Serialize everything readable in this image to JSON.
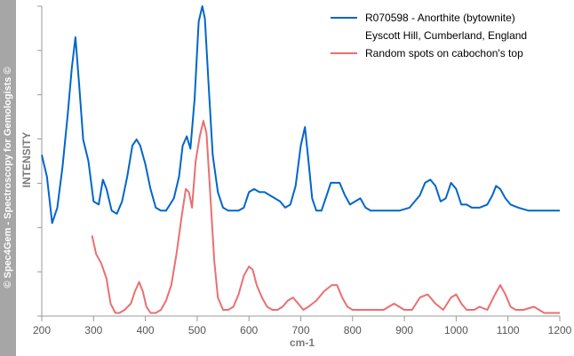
{
  "watermark": "© Spec4Gem - Spectroscopy for Gemologists ©",
  "chart_data": {
    "type": "line",
    "xlabel": "cm-1",
    "ylabel": "INTENSITY",
    "xlim": [
      200,
      1200
    ],
    "ylim": [
      0,
      1
    ],
    "y_ticklabels_shown": false,
    "grid": false,
    "legend_position": "top-right",
    "x_ticks": [
      200,
      300,
      400,
      500,
      600,
      700,
      800,
      900,
      1000,
      1100,
      1200
    ],
    "series": [
      {
        "name": "R070598 - Anorthite (bytownite)",
        "legend_lines": [
          "R070598 - Anorthite (bytownite)",
          "Eyscott Hill, Cumberland, England"
        ],
        "color": "#0066cc",
        "x": [
          200,
          210,
          220,
          230,
          240,
          250,
          258,
          265,
          272,
          280,
          290,
          300,
          310,
          318,
          325,
          335,
          345,
          355,
          365,
          375,
          383,
          390,
          400,
          410,
          420,
          430,
          440,
          455,
          465,
          472,
          480,
          487,
          495,
          503,
          510,
          515,
          522,
          530,
          540,
          550,
          560,
          570,
          580,
          590,
          600,
          610,
          620,
          630,
          640,
          650,
          660,
          670,
          680,
          690,
          700,
          708,
          715,
          722,
          730,
          740,
          750,
          758,
          765,
          775,
          785,
          795,
          805,
          815,
          825,
          835,
          850,
          870,
          890,
          910,
          920,
          930,
          940,
          950,
          960,
          970,
          980,
          990,
          1000,
          1010,
          1020,
          1030,
          1045,
          1060,
          1070,
          1077,
          1085,
          1095,
          1105,
          1120,
          1140,
          1160,
          1180,
          1200
        ],
        "y": [
          0.52,
          0.45,
          0.3,
          0.35,
          0.48,
          0.65,
          0.8,
          0.9,
          0.75,
          0.57,
          0.5,
          0.37,
          0.36,
          0.44,
          0.41,
          0.34,
          0.33,
          0.37,
          0.45,
          0.55,
          0.57,
          0.55,
          0.49,
          0.41,
          0.35,
          0.34,
          0.34,
          0.38,
          0.45,
          0.55,
          0.58,
          0.54,
          0.7,
          0.95,
          1.0,
          0.96,
          0.75,
          0.52,
          0.4,
          0.35,
          0.34,
          0.34,
          0.34,
          0.35,
          0.4,
          0.41,
          0.4,
          0.4,
          0.39,
          0.38,
          0.37,
          0.35,
          0.36,
          0.42,
          0.55,
          0.61,
          0.5,
          0.38,
          0.34,
          0.34,
          0.39,
          0.43,
          0.43,
          0.43,
          0.39,
          0.36,
          0.37,
          0.38,
          0.35,
          0.34,
          0.34,
          0.34,
          0.34,
          0.35,
          0.37,
          0.39,
          0.43,
          0.44,
          0.42,
          0.37,
          0.38,
          0.43,
          0.41,
          0.36,
          0.36,
          0.35,
          0.35,
          0.36,
          0.39,
          0.42,
          0.41,
          0.38,
          0.36,
          0.35,
          0.34,
          0.34,
          0.34,
          0.34
        ]
      },
      {
        "name": "Random spots on cabochon's top",
        "legend_lines": [
          "Random spots on cabochon's top"
        ],
        "color": "#ea6f72",
        "x": [
          297,
          305,
          315,
          325,
          333,
          342,
          350,
          360,
          372,
          380,
          388,
          395,
          402,
          410,
          420,
          430,
          440,
          450,
          460,
          470,
          478,
          484,
          490,
          497,
          505,
          512,
          518,
          525,
          533,
          540,
          550,
          560,
          570,
          580,
          590,
          600,
          607,
          615,
          625,
          635,
          645,
          655,
          665,
          675,
          685,
          695,
          705,
          715,
          730,
          745,
          760,
          770,
          780,
          790,
          800,
          810,
          825,
          840,
          860,
          880,
          900,
          915,
          930,
          945,
          960,
          975,
          990,
          1000,
          1010,
          1020,
          1035,
          1045,
          1060,
          1075,
          1085,
          1095,
          1105,
          1115,
          1130,
          1150,
          1170,
          1190,
          1200
        ],
        "y": [
          0.26,
          0.2,
          0.17,
          0.12,
          0.04,
          0.01,
          0.01,
          0.02,
          0.04,
          0.08,
          0.11,
          0.08,
          0.03,
          0.01,
          0.01,
          0.02,
          0.05,
          0.1,
          0.2,
          0.32,
          0.41,
          0.4,
          0.35,
          0.5,
          0.58,
          0.63,
          0.59,
          0.4,
          0.18,
          0.06,
          0.02,
          0.02,
          0.03,
          0.07,
          0.13,
          0.16,
          0.15,
          0.1,
          0.06,
          0.03,
          0.02,
          0.02,
          0.03,
          0.05,
          0.06,
          0.04,
          0.02,
          0.03,
          0.05,
          0.08,
          0.1,
          0.1,
          0.06,
          0.03,
          0.02,
          0.02,
          0.02,
          0.02,
          0.02,
          0.04,
          0.02,
          0.02,
          0.06,
          0.07,
          0.04,
          0.02,
          0.06,
          0.07,
          0.04,
          0.02,
          0.02,
          0.03,
          0.02,
          0.07,
          0.1,
          0.07,
          0.03,
          0.02,
          0.02,
          0.03,
          0.01,
          0.01,
          0.01
        ]
      }
    ]
  }
}
